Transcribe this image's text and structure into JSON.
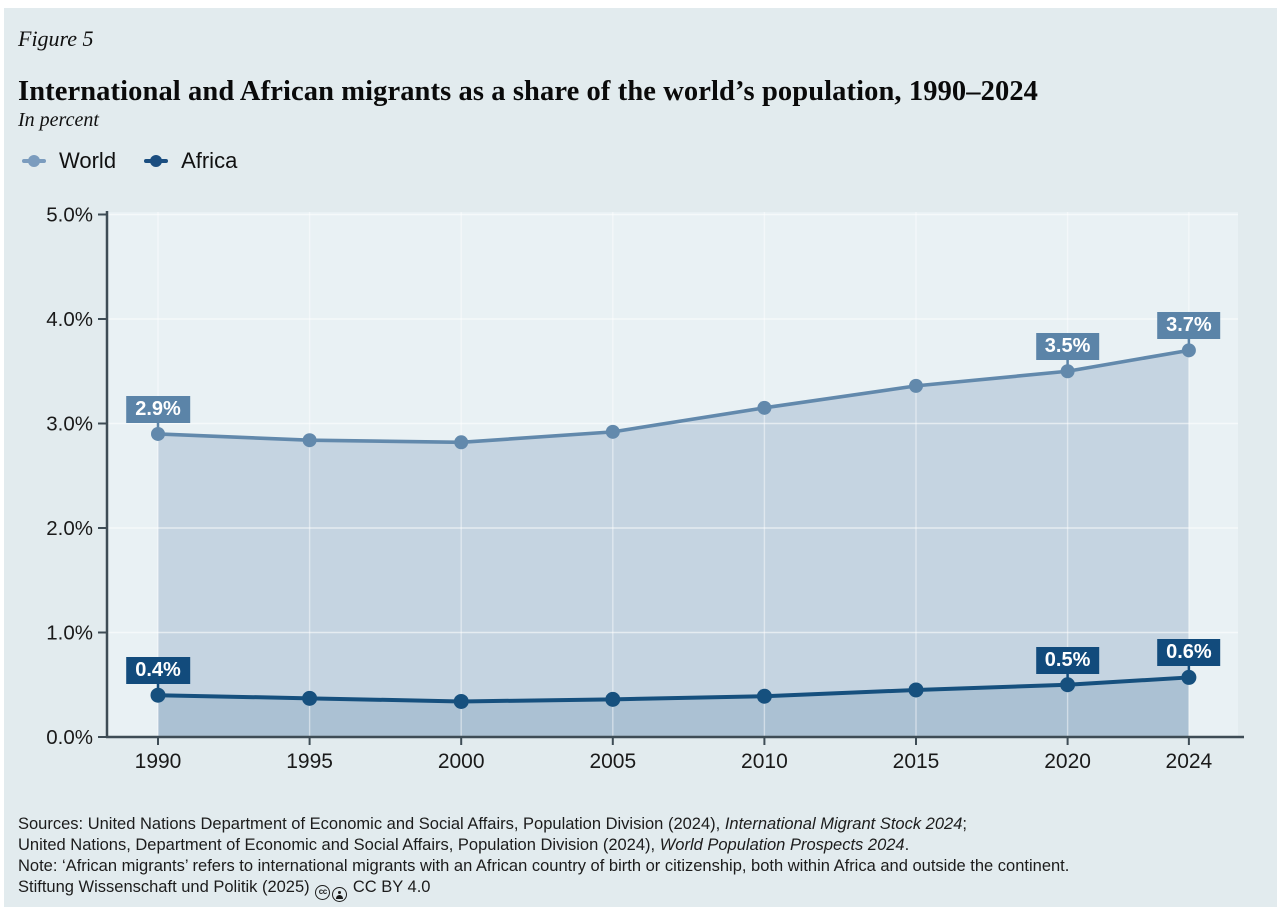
{
  "figure": {
    "label": "Figure 5",
    "title": "International and African migrants as a share of the world’s population, 1990–2024",
    "subtitle": "In percent"
  },
  "chart_data": {
    "type": "area",
    "title": "International and African migrants as a share of the world’s population, 1990–2024",
    "subtitle": "In percent",
    "x": [
      1990,
      1995,
      2000,
      2005,
      2010,
      2015,
      2020,
      2024
    ],
    "x_tick_labels": [
      "1990",
      "1995",
      "2000",
      "2005",
      "2010",
      "2015",
      "2020",
      "2024"
    ],
    "y_tick_values": [
      0,
      1,
      2,
      3,
      4,
      5
    ],
    "y_tick_labels": [
      "0.0%",
      "1.0%",
      "2.0%",
      "3.0%",
      "4.0%",
      "5.0%"
    ],
    "ylim": [
      0,
      5
    ],
    "grid": true,
    "legend_position": "top-left",
    "series": [
      {
        "name": "World",
        "color": "#6289ac",
        "legend_color": "#7b9cbe",
        "fill": "#c5d4e1",
        "label_bg": "#5b84a8",
        "values": [
          2.9,
          2.84,
          2.82,
          2.92,
          3.15,
          3.36,
          3.5,
          3.7
        ]
      },
      {
        "name": "Africa",
        "color": "#16507e",
        "legend_color": "#1b4e80",
        "fill": "#abc1d3",
        "label_bg": "#124b7c",
        "values": [
          0.4,
          0.37,
          0.34,
          0.36,
          0.39,
          0.45,
          0.5,
          0.57
        ]
      }
    ],
    "point_labels": [
      {
        "series": 0,
        "x": 1990,
        "text": "2.9%"
      },
      {
        "series": 0,
        "x": 2020,
        "text": "3.5%"
      },
      {
        "series": 0,
        "x": 2024,
        "text": "3.7%"
      },
      {
        "series": 1,
        "x": 1990,
        "text": "0.4%"
      },
      {
        "series": 1,
        "x": 2020,
        "text": "0.5%"
      },
      {
        "series": 1,
        "x": 2024,
        "text": "0.6%"
      }
    ]
  },
  "footer": {
    "lines": [
      [
        {
          "text": "Sources: United Nations Department of Economic and Social Affairs, Population Division (2024), "
        },
        {
          "text": "International Migrant Stock 2024",
          "italic": true
        },
        {
          "text": ";"
        }
      ],
      [
        {
          "text": "United Nations, Department of Economic and Social Affairs, Population Division (2024), "
        },
        {
          "text": "World Population Prospects 2024",
          "italic": true
        },
        {
          "text": "."
        }
      ],
      [
        {
          "text": "Note: ‘African migrants’ refers to international migrants with an African country of birth or citizenship, both within Africa and outside the continent."
        }
      ],
      [
        {
          "text": "Stiftung Wissenschaft und Politik (2025) "
        },
        {
          "icons": true
        },
        {
          "text": " CC BY 4.0"
        }
      ]
    ]
  },
  "colors": {
    "page_bg": "#e2ebee",
    "plot_bg": "#e9f1f4",
    "axis": "#3e4c55",
    "tick_text": "#1a1a1a",
    "gridline": "rgba(255,255,255,0.55)"
  }
}
